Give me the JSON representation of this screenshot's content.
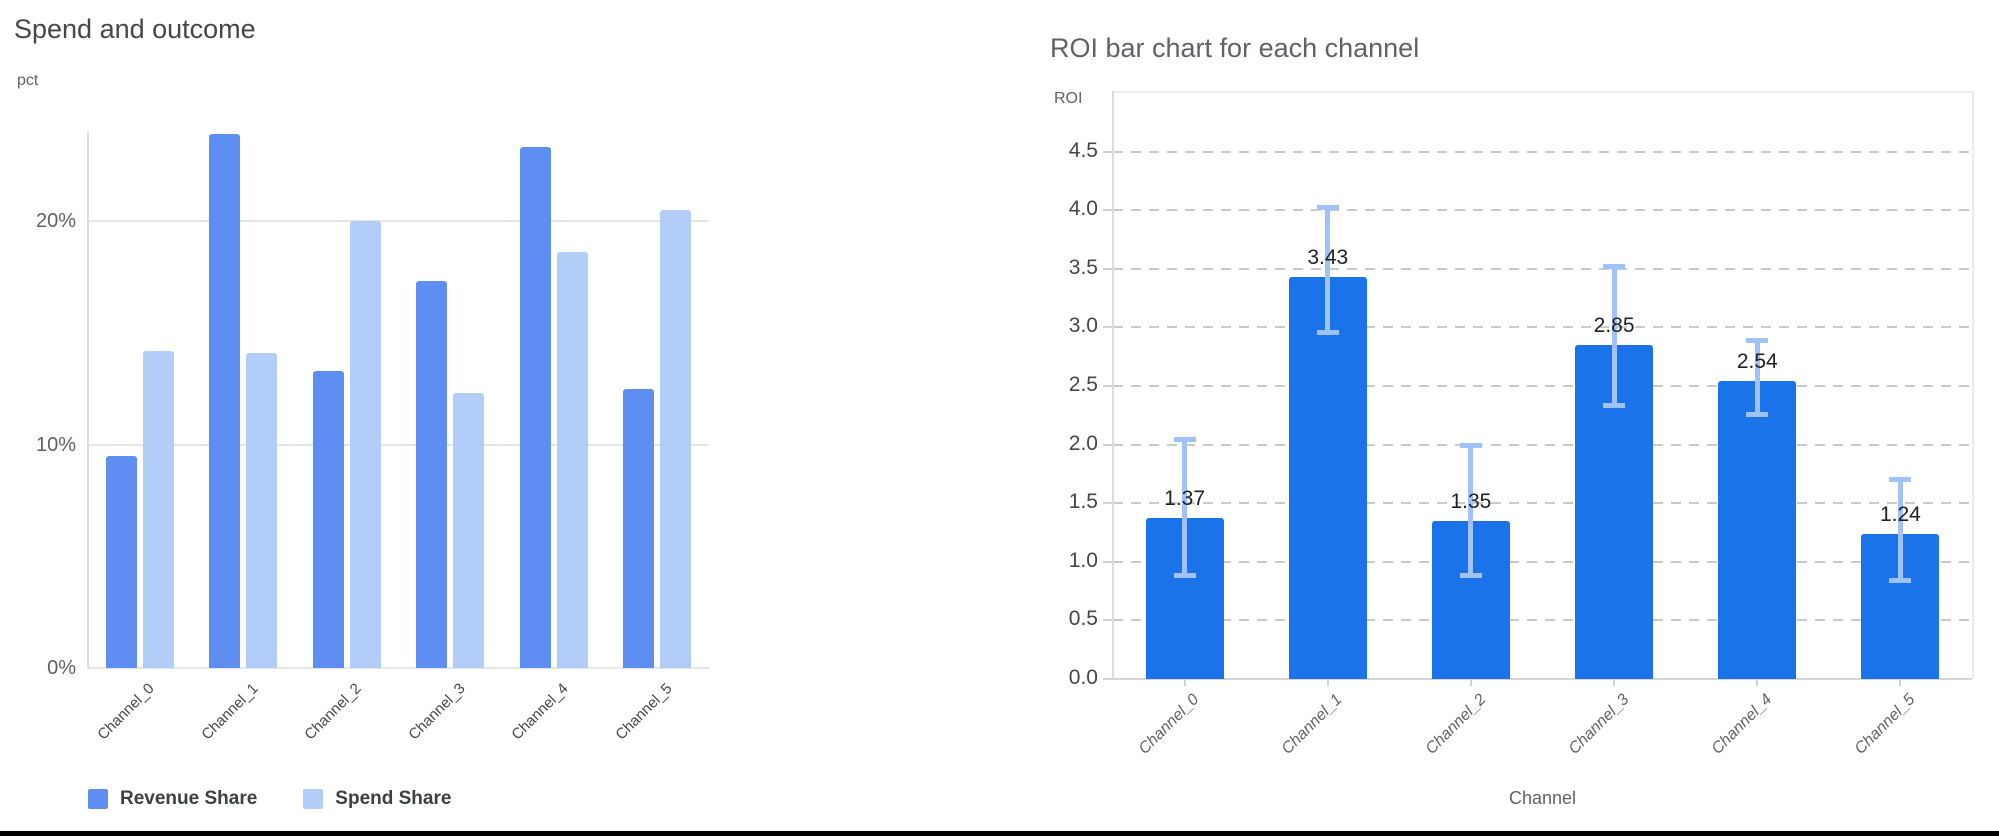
{
  "page": {
    "background": "#ffffff",
    "bottom_bar_color": "#000000"
  },
  "charts": {
    "left": {
      "title": "Spend and outcome",
      "unit_label": "pct",
      "y_tick_labels": [
        "0%",
        "10%",
        "20%"
      ],
      "x_labels": [
        "Channel_0",
        "Channel_1",
        "Channel_2",
        "Channel_3",
        "Channel_4",
        "Channel_5"
      ],
      "legend": [
        {
          "label": "Revenue Share",
          "color": "#5f8ef3"
        },
        {
          "label": "Spend Share",
          "color": "#b3cdf9"
        }
      ]
    },
    "right": {
      "title": "ROI bar chart for each channel",
      "unit_label": "ROI",
      "x_axis_title": "Channel",
      "y_tick_labels": [
        "0.0",
        "0.5",
        "1.0",
        "1.5",
        "2.0",
        "2.5",
        "3.0",
        "3.5",
        "4.0",
        "4.5"
      ],
      "x_labels": [
        "Channel_0",
        "Channel_1",
        "Channel_2",
        "Channel_3",
        "Channel_4",
        "Channel_5"
      ],
      "bar_color": "#1a73e8",
      "error_color": "#a0c2f9"
    }
  },
  "chart_data": [
    {
      "type": "bar",
      "title": "Spend and outcome",
      "ylabel": "pct",
      "xlabel": "",
      "categories": [
        "Channel_0",
        "Channel_1",
        "Channel_2",
        "Channel_3",
        "Channel_4",
        "Channel_5"
      ],
      "series": [
        {
          "name": "Revenue Share",
          "color": "#5f8ef3",
          "values": [
            9.5,
            23.9,
            13.3,
            17.3,
            23.3,
            12.5
          ]
        },
        {
          "name": "Spend Share",
          "color": "#b3cdf9",
          "values": [
            14.2,
            14.1,
            20.0,
            12.3,
            18.6,
            20.5
          ]
        }
      ],
      "y_axis": {
        "ticks": [
          0,
          10,
          20
        ],
        "tick_labels": [
          "0%",
          "10%",
          "20%"
        ],
        "max": 24,
        "unit": "percent"
      },
      "grid": "horizontal-solid",
      "legend_position": "bottom"
    },
    {
      "type": "bar",
      "title": "ROI bar chart for each channel",
      "ylabel": "ROI",
      "xlabel": "Channel",
      "categories": [
        "Channel_0",
        "Channel_1",
        "Channel_2",
        "Channel_3",
        "Channel_4",
        "Channel_5"
      ],
      "values": [
        1.37,
        3.43,
        1.35,
        2.85,
        2.54,
        1.24
      ],
      "value_labels": [
        "1.37",
        "3.43",
        "1.35",
        "2.85",
        "2.54",
        "1.24"
      ],
      "error_bars": {
        "low": [
          0.88,
          2.95,
          0.88,
          2.33,
          2.25,
          0.84
        ],
        "high": [
          2.05,
          4.03,
          2.0,
          3.52,
          2.89,
          1.71
        ]
      },
      "y_axis": {
        "ticks": [
          0.0,
          0.5,
          1.0,
          1.5,
          2.0,
          2.5,
          3.0,
          3.5,
          4.0,
          4.5
        ],
        "max": 5.0
      },
      "grid": "horizontal-dashed",
      "legend_position": "none"
    }
  ]
}
